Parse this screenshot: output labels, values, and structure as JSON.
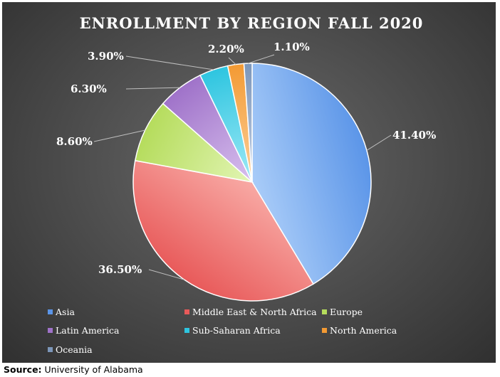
{
  "source": {
    "label": "Source:",
    "text": "University of Alabama"
  },
  "chart_data": {
    "type": "pie",
    "title": "ENROLLMENT BY REGION FALL 2020",
    "legend_position": "bottom",
    "slices": [
      {
        "name": "Asia",
        "value": 41.4,
        "label": "41.40%",
        "color": "#5b95e8",
        "color_light": "#a9ccf8"
      },
      {
        "name": "Middle East & North Africa",
        "value": 36.5,
        "label": "36.50%",
        "color": "#e85a5a",
        "color_light": "#f8a9a4"
      },
      {
        "name": "Europe",
        "value": 8.6,
        "label": "8.60%",
        "color": "#b5dc5c",
        "color_light": "#e2f5b4"
      },
      {
        "name": "Latin America",
        "value": 6.3,
        "label": "6.30%",
        "color": "#9f72c9",
        "color_light": "#d8c0ee"
      },
      {
        "name": "Sub-Saharan Africa",
        "value": 3.9,
        "label": "3.90%",
        "color": "#2ec5e0",
        "color_light": "#9ee9f6"
      },
      {
        "name": "North America",
        "value": 2.2,
        "label": "2.20%",
        "color": "#f39a33",
        "color_light": "#fcd09a"
      },
      {
        "name": "Oceania",
        "value": 1.1,
        "label": "1.10%",
        "color": "#7c96b9",
        "color_light": "#c2d0e4"
      }
    ]
  }
}
